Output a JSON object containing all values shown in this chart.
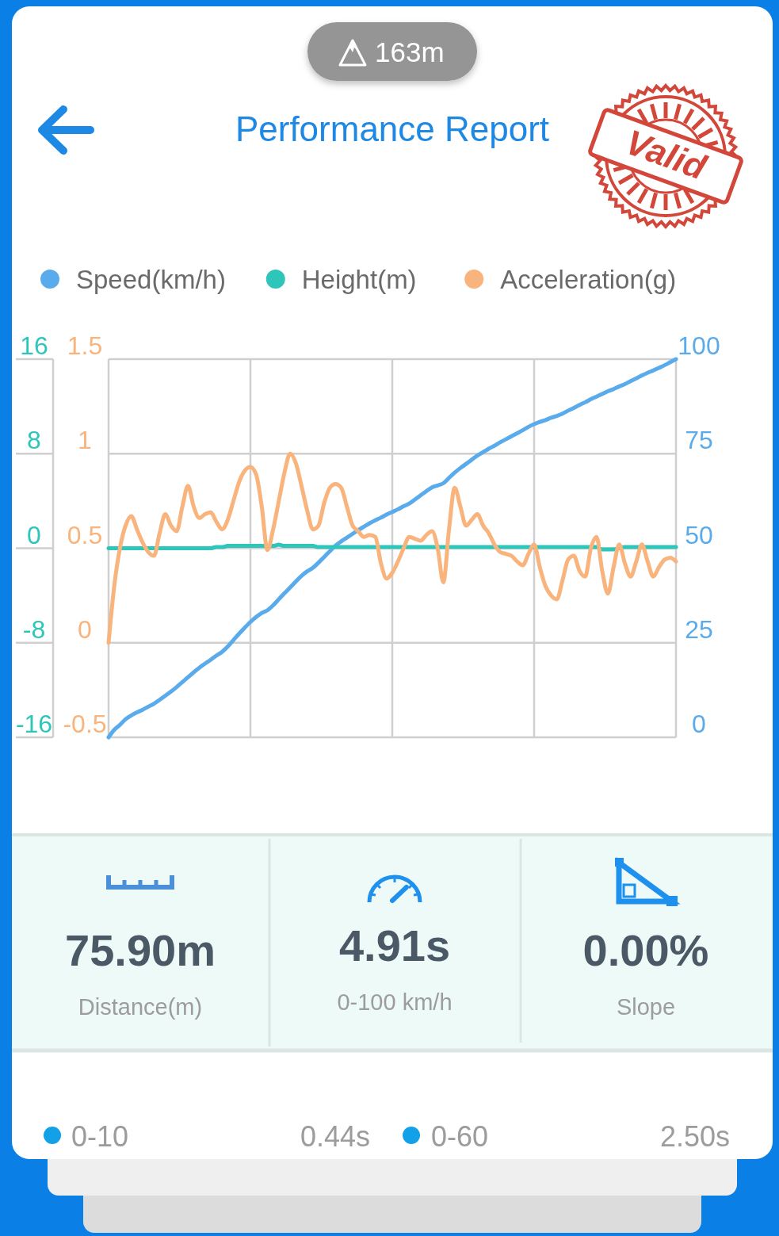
{
  "chart_data": {
    "type": "line",
    "title": "Performance Report",
    "categories": [
      null,
      null,
      null,
      null,
      null,
      null,
      null,
      null,
      null,
      null,
      null,
      null,
      null,
      null,
      null,
      null,
      null,
      null,
      null,
      null,
      null,
      null,
      null,
      null,
      null,
      null,
      null,
      null,
      null,
      null,
      null,
      null,
      null,
      null,
      null,
      null,
      null,
      null,
      null,
      null,
      null,
      null,
      null,
      null,
      null,
      null,
      null,
      null,
      null,
      null,
      null,
      null,
      null,
      null,
      null,
      null,
      null,
      null,
      null,
      null,
      null,
      null,
      null,
      null,
      null,
      null,
      null,
      null,
      null,
      null,
      null,
      null,
      null,
      null,
      null,
      null,
      null,
      null,
      null,
      null,
      null,
      null,
      null,
      null,
      null,
      null,
      null,
      null,
      null,
      null,
      null,
      null,
      null,
      null,
      null,
      null,
      null,
      null,
      null,
      null,
      null
    ],
    "series": [
      {
        "name": "Speed(km/h)",
        "color": "#5aabec",
        "axis": "y2",
        "values": [
          0,
          2,
          3.3,
          4.8,
          5.8,
          6.6,
          7.3,
          8.1,
          8.9,
          9.9,
          11,
          12.1,
          13.3,
          14.6,
          15.9,
          17.2,
          18.4,
          19.5,
          20.5,
          21.6,
          22.6,
          24,
          25.7,
          27.4,
          29,
          30.5,
          31.8,
          32.9,
          33.6,
          34.9,
          36.5,
          38.1,
          39.6,
          41.2,
          42.7,
          43.9,
          44.8,
          46.2,
          47.7,
          49.2,
          50.7,
          51.8,
          52.8,
          53.8,
          54.8,
          55.7,
          56.6,
          57.4,
          58.1,
          58.9,
          59.6,
          60.3,
          61.1,
          61.8,
          62.9,
          64,
          65.1,
          66.1,
          66.6,
          67.2,
          68.6,
          70,
          71.2,
          72.3,
          73.4,
          74.5,
          75.4,
          76.3,
          77.1,
          78,
          78.8,
          79.6,
          80.4,
          81.2,
          82.1,
          82.8,
          83.4,
          83.9,
          84.5,
          85,
          85.6,
          86.4,
          87.1,
          87.9,
          88.6,
          89.4,
          90.1,
          90.8,
          91.5,
          92.1,
          92.8,
          93.4,
          94.2,
          94.9,
          95.7,
          96.4,
          97,
          97.7,
          98.4,
          99.2,
          100
        ]
      },
      {
        "name": "Height(m)",
        "color": "#2ec5bb",
        "axis": "y3",
        "values": [
          0,
          0,
          0,
          0,
          0,
          0,
          0,
          0,
          0,
          0,
          0,
          0,
          0,
          0,
          0,
          0,
          0,
          0,
          0,
          0.1,
          0.1,
          0.2,
          0.2,
          0.2,
          0.2,
          0.2,
          0.2,
          0.2,
          0.2,
          0.2,
          0.3,
          0.2,
          0.2,
          0.2,
          0.2,
          0.2,
          0.2,
          0.1,
          0.1,
          0.1,
          0.1,
          0.1,
          0.1,
          0.1,
          0.1,
          0.1,
          0.1,
          0.1,
          0.1,
          0.1,
          0.1,
          0.1,
          0.1,
          0.1,
          0.1,
          0.1,
          0.1,
          0.1,
          0.1,
          0.1,
          0.1,
          0.1,
          0.1,
          0.1,
          0.1,
          0.1,
          0.1,
          0.1,
          0.1,
          0.1,
          0.1,
          0.1,
          0.1,
          0.1,
          0.1,
          0.1,
          0.1,
          0.1,
          0.1,
          0.1,
          0.1,
          0.1,
          0.1,
          0.1,
          0.1,
          0.1,
          0.1,
          -0.1,
          -0.1,
          -0.1,
          0,
          0.1,
          0.1,
          0.1,
          0.1,
          0.1,
          0.1,
          0.1,
          0.1,
          0.1,
          0.1
        ]
      },
      {
        "name": "Acceleration(g)",
        "color": "#f8b47c",
        "values": [
          0,
          0.3,
          0.5,
          0.62,
          0.67,
          0.6,
          0.53,
          0.48,
          0.46,
          0.58,
          0.68,
          0.62,
          0.59,
          0.72,
          0.83,
          0.72,
          0.66,
          0.68,
          0.69,
          0.64,
          0.6,
          0.65,
          0.75,
          0.85,
          0.91,
          0.93,
          0.89,
          0.72,
          0.49,
          0.6,
          0.75,
          0.9,
          1,
          0.95,
          0.83,
          0.7,
          0.6,
          0.62,
          0.74,
          0.82,
          0.84,
          0.82,
          0.72,
          0.62,
          0.59,
          0.56,
          0.57,
          0.56,
          0.42,
          0.34,
          0.37,
          0.43,
          0.5,
          0.56,
          0.55,
          0.54,
          0.57,
          0.59,
          0.5,
          0.32,
          0.6,
          0.82,
          0.72,
          0.62,
          0.65,
          0.68,
          0.62,
          0.58,
          0.52,
          0.48,
          0.47,
          0.46,
          0.43,
          0.41,
          0.47,
          0.52,
          0.4,
          0.3,
          0.25,
          0.23,
          0.33,
          0.44,
          0.46,
          0.38,
          0.35,
          0.5,
          0.56,
          0.38,
          0.26,
          0.4,
          0.52,
          0.42,
          0.35,
          0.43,
          0.52,
          0.43,
          0.35,
          0.4,
          0.44,
          0.45,
          0.43
        ]
      }
    ],
    "ylim": [
      -0.5,
      1.5
    ],
    "yticks": [
      -0.5,
      0,
      0.5,
      1,
      1.5
    ],
    "y2lim": [
      0,
      100
    ],
    "y2ticks": [
      0,
      25,
      50,
      75,
      100
    ],
    "y3lim": [
      -16,
      16
    ],
    "y3ticks": [
      -16,
      -8,
      0,
      8,
      16
    ],
    "grid": true,
    "legend": "top",
    "annotations": [
      "163m",
      "Valid",
      "75.90m",
      "Distance(m)",
      "4.91s",
      "0-100 km/h",
      "0.00%",
      "Slope",
      "0-10",
      "0.44s",
      "0-60",
      "2.50s"
    ]
  }
}
